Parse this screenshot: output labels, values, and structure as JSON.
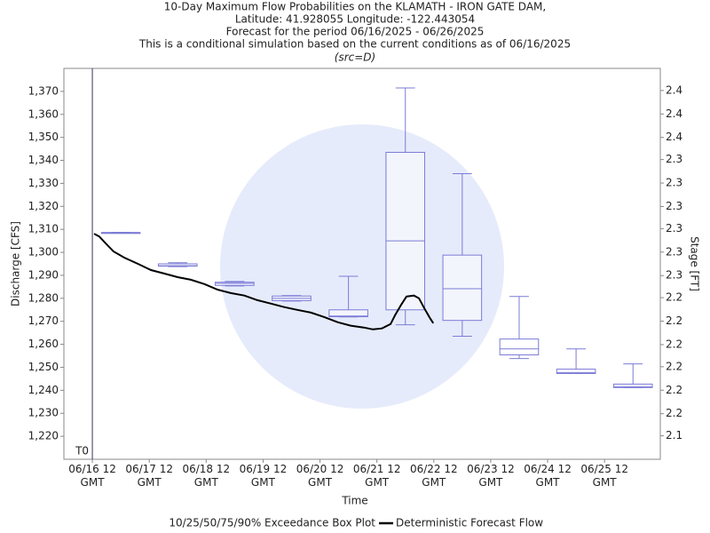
{
  "chart_data": {
    "type": "boxplot-line",
    "title_lines": [
      "10-Day Maximum Flow Probabilities on the KLAMATH - IRON GATE DAM,",
      "Latitude: 41.928055 Longitude: -122.443054",
      "Forecast for the period 06/16/2025 - 06/26/2025",
      "This is a conditional simulation based on the current conditions as of 06/16/2025",
      "(src=D)"
    ],
    "x_label": "Time",
    "y_label": "Discharge [CFS]",
    "y2_label": "Stage [FT]",
    "xlim": [
      -0.5,
      9.98
    ],
    "xticks": [
      {
        "value": 0,
        "label": "06/16 12 GMT"
      },
      {
        "value": 1,
        "label": "06/17 12 GMT"
      },
      {
        "value": 2,
        "label": "06/18 12 GMT"
      },
      {
        "value": 3,
        "label": "06/19 12 GMT"
      },
      {
        "value": 4,
        "label": "06/20 12 GMT"
      },
      {
        "value": 5,
        "label": "06/21 12 GMT"
      },
      {
        "value": 6,
        "label": "06/22 12 GMT"
      },
      {
        "value": 7,
        "label": "06/23 12 GMT"
      },
      {
        "value": 8,
        "label": "06/24 12 GMT"
      },
      {
        "value": 9,
        "label": "06/25 12 GMT"
      }
    ],
    "ylim": [
      1210,
      1380
    ],
    "yticks": [
      {
        "value": 1220,
        "label": "1,220"
      },
      {
        "value": 1230,
        "label": "1,230"
      },
      {
        "value": 1240,
        "label": "1,240"
      },
      {
        "value": 1250,
        "label": "1,250"
      },
      {
        "value": 1260,
        "label": "1,260"
      },
      {
        "value": 1270,
        "label": "1,270"
      },
      {
        "value": 1280,
        "label": "1,280"
      },
      {
        "value": 1290,
        "label": "1,290"
      },
      {
        "value": 1300,
        "label": "1,300"
      },
      {
        "value": 1310,
        "label": "1,310"
      },
      {
        "value": 1320,
        "label": "1,320"
      },
      {
        "value": 1330,
        "label": "1,330"
      },
      {
        "value": 1340,
        "label": "1,340"
      },
      {
        "value": 1350,
        "label": "1,350"
      },
      {
        "value": 1360,
        "label": "1,360"
      },
      {
        "value": 1370,
        "label": "1,370"
      }
    ],
    "y2lim": [
      2.125,
      2.408
    ],
    "y2ticks": [
      {
        "value": 2.142,
        "label": "2.1"
      },
      {
        "value": 2.158,
        "label": "2.2"
      },
      {
        "value": 2.175,
        "label": "2.2"
      },
      {
        "value": 2.192,
        "label": "2.2"
      },
      {
        "value": 2.208,
        "label": "2.2"
      },
      {
        "value": 2.225,
        "label": "2.2"
      },
      {
        "value": 2.242,
        "label": "2.2"
      },
      {
        "value": 2.258,
        "label": "2.3"
      },
      {
        "value": 2.275,
        "label": "2.3"
      },
      {
        "value": 2.292,
        "label": "2.3"
      },
      {
        "value": 2.308,
        "label": "2.3"
      },
      {
        "value": 2.325,
        "label": "2.3"
      },
      {
        "value": 2.342,
        "label": "2.3"
      },
      {
        "value": 2.358,
        "label": "2.4"
      },
      {
        "value": 2.375,
        "label": "2.4"
      },
      {
        "value": 2.392,
        "label": "2.4"
      }
    ],
    "t0": {
      "label": "T0",
      "x": 0
    },
    "box_name": "10/25/50/75/90% Exceedance Box Plot",
    "box_color": "#7b7bd6",
    "box_width": 0.68,
    "boxes": [
      {
        "x": 0.5,
        "p10": 1308.6,
        "p25": 1308.6,
        "p50": 1308.6,
        "p75": 1308.6,
        "p90": 1308.6
      },
      {
        "x": 1.5,
        "p10": 1293.8,
        "p25": 1294,
        "p50": 1294.2,
        "p75": 1295,
        "p90": 1295.5
      },
      {
        "x": 2.5,
        "p10": 1285.4,
        "p25": 1285.6,
        "p50": 1286.5,
        "p75": 1287,
        "p90": 1287.3
      },
      {
        "x": 3.5,
        "p10": 1278.8,
        "p25": 1279,
        "p50": 1280,
        "p75": 1281,
        "p90": 1281.2
      },
      {
        "x": 4.5,
        "p10": 1271.9,
        "p25": 1272,
        "p50": 1272.3,
        "p75": 1275,
        "p90": 1289.6
      },
      {
        "x": 5.5,
        "p10": 1268.5,
        "p25": 1275,
        "p50": 1305,
        "p75": 1343.5,
        "p90": 1371.5
      },
      {
        "x": 6.5,
        "p10": 1263.5,
        "p25": 1270.4,
        "p50": 1284.2,
        "p75": 1298.8,
        "p90": 1334.2
      },
      {
        "x": 7.5,
        "p10": 1253.8,
        "p25": 1255.4,
        "p50": 1258,
        "p75": 1262.3,
        "p90": 1280.8
      },
      {
        "x": 8.5,
        "p10": 1247.3,
        "p25": 1247.3,
        "p50": 1247.7,
        "p75": 1249.2,
        "p90": 1258
      },
      {
        "x": 9.5,
        "p10": 1241.2,
        "p25": 1241.2,
        "p50": 1241.5,
        "p75": 1242.7,
        "p90": 1251.5
      }
    ],
    "line": {
      "name": "Deterministic Forecast Flow",
      "color": "#000000",
      "x": [
        0.03,
        0.12,
        0.25,
        0.37,
        0.56,
        0.8,
        1.03,
        1.26,
        1.5,
        1.73,
        1.97,
        2.2,
        2.43,
        2.67,
        2.9,
        3.14,
        3.37,
        3.6,
        3.84,
        4.07,
        4.31,
        4.54,
        4.77,
        4.93,
        5.09,
        5.24,
        5.32,
        5.43,
        5.52,
        5.65,
        5.74,
        5.83,
        5.93,
        5.99
      ],
      "y": [
        1308.1,
        1306.9,
        1303.5,
        1300.4,
        1297.7,
        1295,
        1292.3,
        1290.8,
        1289.2,
        1288.1,
        1286.2,
        1283.8,
        1282.3,
        1281.2,
        1279.2,
        1277.7,
        1276.2,
        1275,
        1273.8,
        1271.9,
        1269.6,
        1268.1,
        1267.3,
        1266.5,
        1266.9,
        1268.8,
        1272.7,
        1277.3,
        1280.8,
        1281.2,
        1280,
        1275.8,
        1271.5,
        1269.2
      ]
    }
  }
}
